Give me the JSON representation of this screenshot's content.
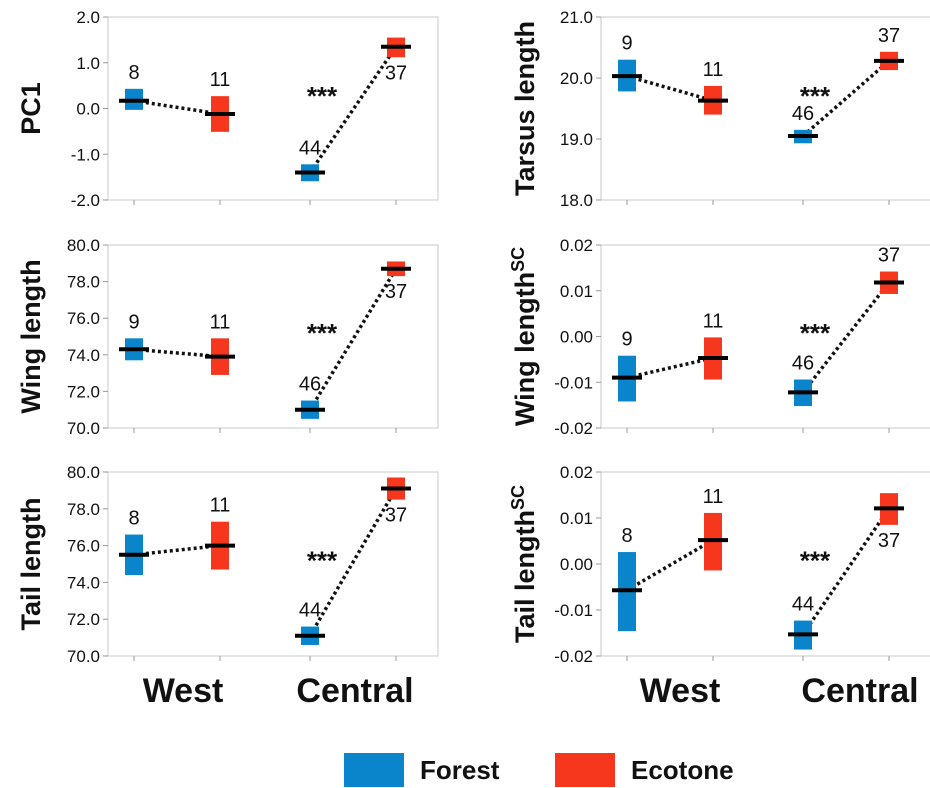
{
  "colors": {
    "forest": "#0a85cc",
    "ecotone": "#f7361e",
    "axis": "#c8c8c8",
    "line": "#111111"
  },
  "legend": {
    "forest_label": "Forest",
    "ecotone_label": "Ecotone"
  },
  "x_categories": {
    "left_west": "West",
    "left_central": "Central",
    "right_west": "West",
    "right_central": "Central"
  },
  "chart_data": [
    {
      "type": "scatter",
      "ylabel": "PC1",
      "ylim": [
        -2.0,
        2.0
      ],
      "ticks": [
        -2.0,
        -1.0,
        0.0,
        1.0,
        2.0
      ],
      "tick_labels": [
        "-2.0",
        "-1.0",
        "0.0",
        "1.0",
        "2.0"
      ],
      "categories": [
        "West",
        "Central"
      ],
      "points": [
        {
          "group": "Forest",
          "region": "West",
          "mean": 0.17,
          "low": -0.03,
          "high": 0.43,
          "n": "8"
        },
        {
          "group": "Ecotone",
          "region": "West",
          "mean": -0.12,
          "low": -0.51,
          "high": 0.27,
          "n": "11"
        },
        {
          "group": "Forest",
          "region": "Central",
          "mean": -1.4,
          "low": -1.59,
          "high": -1.22,
          "n": "44"
        },
        {
          "group": "Ecotone",
          "region": "Central",
          "mean": 1.35,
          "low": 1.12,
          "high": 1.55,
          "n": "37"
        }
      ],
      "significance": "***"
    },
    {
      "type": "scatter",
      "ylabel": "Tarsus length",
      "ylim": [
        18.0,
        21.0
      ],
      "ticks": [
        18.0,
        19.0,
        20.0,
        21.0
      ],
      "tick_labels": [
        "18.0",
        "19.0",
        "20.0",
        "21.0"
      ],
      "categories": [
        "West",
        "Central"
      ],
      "points": [
        {
          "group": "Forest",
          "region": "West",
          "mean": 20.03,
          "low": 19.78,
          "high": 20.3,
          "n": "9"
        },
        {
          "group": "Ecotone",
          "region": "West",
          "mean": 19.63,
          "low": 19.4,
          "high": 19.87,
          "n": "11"
        },
        {
          "group": "Forest",
          "region": "Central",
          "mean": 19.05,
          "low": 18.93,
          "high": 19.15,
          "n": "46"
        },
        {
          "group": "Ecotone",
          "region": "Central",
          "mean": 20.28,
          "low": 20.13,
          "high": 20.43,
          "n": "37"
        }
      ],
      "significance": "***"
    },
    {
      "type": "scatter",
      "ylabel": "Wing length",
      "ylim": [
        70.0,
        80.0
      ],
      "ticks": [
        70.0,
        72.0,
        74.0,
        76.0,
        78.0,
        80.0
      ],
      "tick_labels": [
        "70.0",
        "72.0",
        "74.0",
        "76.0",
        "78.0",
        "80.0"
      ],
      "categories": [
        "West",
        "Central"
      ],
      "points": [
        {
          "group": "Forest",
          "region": "West",
          "mean": 74.3,
          "low": 73.7,
          "high": 74.9,
          "n": "9"
        },
        {
          "group": "Ecotone",
          "region": "West",
          "mean": 73.9,
          "low": 72.9,
          "high": 74.9,
          "n": "11"
        },
        {
          "group": "Forest",
          "region": "Central",
          "mean": 71.0,
          "low": 70.5,
          "high": 71.5,
          "n": "46"
        },
        {
          "group": "Ecotone",
          "region": "Central",
          "mean": 78.7,
          "low": 78.3,
          "high": 79.1,
          "n": "37"
        }
      ],
      "significance": "***"
    },
    {
      "type": "scatter",
      "ylabel": "Wing length",
      "ylabel_sup": "SC",
      "ylim": [
        -0.02,
        0.02
      ],
      "ticks": [
        -0.02,
        -0.01,
        0.0,
        0.01,
        0.02
      ],
      "tick_labels": [
        "-0.02",
        "-0.01",
        "0.00",
        "0.01",
        "0.02"
      ],
      "categories": [
        "West",
        "Central"
      ],
      "points": [
        {
          "group": "Forest",
          "region": "West",
          "mean": -0.009,
          "low": -0.0142,
          "high": -0.0042,
          "n": "9"
        },
        {
          "group": "Ecotone",
          "region": "West",
          "mean": -0.0047,
          "low": -0.0094,
          "high": -0.0002,
          "n": "11"
        },
        {
          "group": "Forest",
          "region": "Central",
          "mean": -0.0122,
          "low": -0.0152,
          "high": -0.0094,
          "n": "46"
        },
        {
          "group": "Ecotone",
          "region": "Central",
          "mean": 0.0118,
          "low": 0.0093,
          "high": 0.0142,
          "n": "37"
        }
      ],
      "significance": "***"
    },
    {
      "type": "scatter",
      "ylabel": "Tail length",
      "ylim": [
        70.0,
        80.0
      ],
      "ticks": [
        70.0,
        72.0,
        74.0,
        76.0,
        78.0,
        80.0
      ],
      "tick_labels": [
        "70.0",
        "72.0",
        "74.0",
        "76.0",
        "78.0",
        "80.0"
      ],
      "categories": [
        "West",
        "Central"
      ],
      "points": [
        {
          "group": "Forest",
          "region": "West",
          "mean": 75.5,
          "low": 74.4,
          "high": 76.6,
          "n": "8"
        },
        {
          "group": "Ecotone",
          "region": "West",
          "mean": 76.0,
          "low": 74.7,
          "high": 77.3,
          "n": "11"
        },
        {
          "group": "Forest",
          "region": "Central",
          "mean": 71.1,
          "low": 70.6,
          "high": 71.6,
          "n": "44"
        },
        {
          "group": "Ecotone",
          "region": "Central",
          "mean": 79.1,
          "low": 78.5,
          "high": 79.7,
          "n": "37"
        }
      ],
      "significance": "***"
    },
    {
      "type": "scatter",
      "ylabel": "Tail length",
      "ylabel_sup": "SC",
      "ylim": [
        -0.02,
        0.02
      ],
      "ticks": [
        -0.02,
        -0.01,
        0.0,
        0.01,
        0.02
      ],
      "tick_labels": [
        "-0.02",
        "-0.01",
        "0.00",
        "0.01",
        "0.02"
      ],
      "categories": [
        "West",
        "Central"
      ],
      "points": [
        {
          "group": "Forest",
          "region": "West",
          "mean": -0.0057,
          "low": -0.0146,
          "high": 0.0026,
          "n": "8"
        },
        {
          "group": "Ecotone",
          "region": "West",
          "mean": 0.0052,
          "low": -0.0014,
          "high": 0.0111,
          "n": "11"
        },
        {
          "group": "Forest",
          "region": "Central",
          "mean": -0.0153,
          "low": -0.0186,
          "high": -0.0123,
          "n": "44"
        },
        {
          "group": "Ecotone",
          "region": "Central",
          "mean": 0.0121,
          "low": 0.0085,
          "high": 0.0154,
          "n": "37"
        }
      ],
      "significance": "***"
    }
  ]
}
